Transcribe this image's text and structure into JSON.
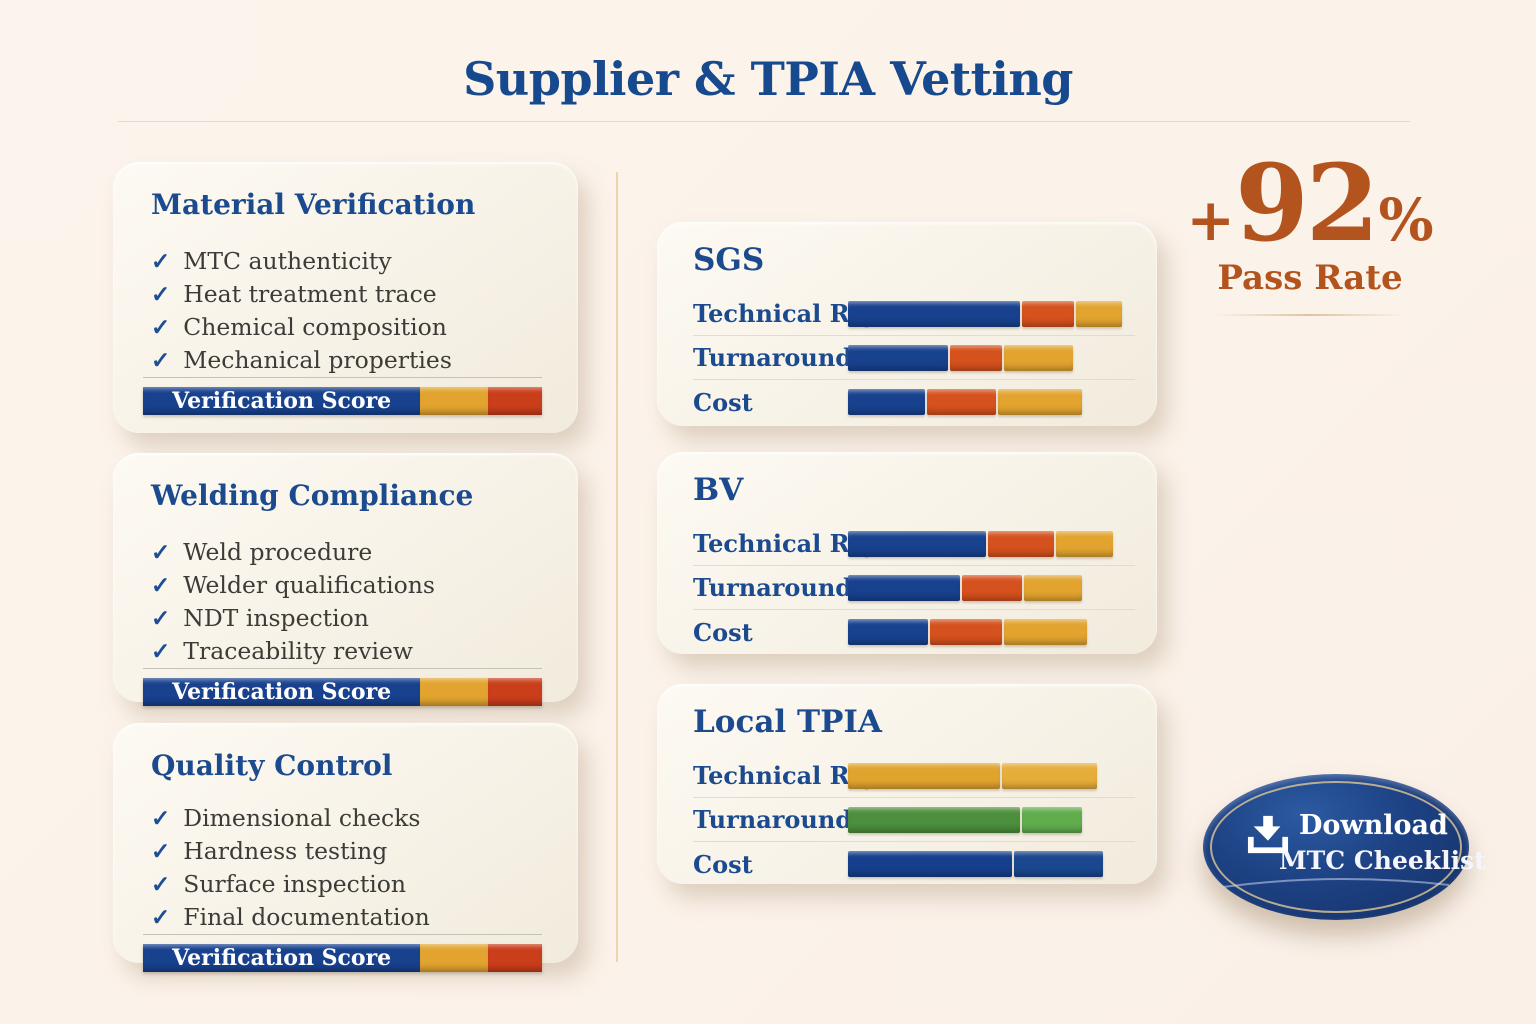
{
  "header": {
    "title": "Supplier & TPIA Vetting"
  },
  "colors": {
    "background": "#fbf2ea",
    "navy": "#1b4a8f",
    "rust": "#b3541f",
    "bar_blue": "#18418e",
    "bar_orange": "#d5511d",
    "bar_gold": "#e2a42f",
    "bar_red": "#ca3e1a",
    "bar_green": "#4c8f3d"
  },
  "checklist_cards": [
    {
      "title": "Material Verification",
      "items": [
        "MTC authenticity",
        "Heat treatment trace",
        "Chemical composition",
        "Mechanical properties"
      ],
      "score_bar": {
        "label": "Verification Score",
        "segments": [
          {
            "color": "#18418e",
            "pct": 69.5
          },
          {
            "color": "#e2a42f",
            "pct": 17
          },
          {
            "color": "#ca3e1a",
            "pct": 13.5
          }
        ]
      }
    },
    {
      "title": "Welding Compliance",
      "items": [
        "Weld procedure",
        "Welder qualifications",
        "NDT inspection",
        "Traceability review"
      ],
      "score_bar": {
        "label": "Verification Score",
        "segments": [
          {
            "color": "#18418e",
            "pct": 69.5
          },
          {
            "color": "#e2a42f",
            "pct": 17
          },
          {
            "color": "#ca3e1a",
            "pct": 13.5
          }
        ]
      }
    },
    {
      "title": "Quality Control",
      "items": [
        "Dimensional checks",
        "Hardness testing",
        "Surface inspection",
        "Final documentation"
      ],
      "score_bar": {
        "label": "Verification Score",
        "segments": [
          {
            "color": "#18418e",
            "pct": 69.5
          },
          {
            "color": "#e2a42f",
            "pct": 17
          },
          {
            "color": "#ca3e1a",
            "pct": 13.5
          }
        ]
      }
    }
  ],
  "tpia_cards": [
    {
      "title": "SGS",
      "rule_color": "#c9a25a",
      "rows": [
        {
          "label": "Technical Rigor",
          "segments": [
            {
              "color": "#18418e",
              "pct": 60
            },
            {
              "color": "#d5511d",
              "pct": 18
            },
            {
              "color": "#e2a42f",
              "pct": 16
            }
          ]
        },
        {
          "label": "Turnaround",
          "segments": [
            {
              "color": "#18418e",
              "pct": 35
            },
            {
              "color": "#d5511d",
              "pct": 18
            },
            {
              "color": "#e2a42f",
              "pct": 24
            }
          ]
        },
        {
          "label": "Cost",
          "segments": [
            {
              "color": "#18418e",
              "pct": 27
            },
            {
              "color": "#d5511d",
              "pct": 24
            },
            {
              "color": "#e2a42f",
              "pct": 29
            }
          ]
        }
      ]
    },
    {
      "title": "BV",
      "rule_color": "#d97a38",
      "rows": [
        {
          "label": "Technical Rigor",
          "segments": [
            {
              "color": "#18418e",
              "pct": 48
            },
            {
              "color": "#d5511d",
              "pct": 23
            },
            {
              "color": "#e2a42f",
              "pct": 20
            }
          ]
        },
        {
          "label": "Turnaround",
          "segments": [
            {
              "color": "#18418e",
              "pct": 39
            },
            {
              "color": "#d5511d",
              "pct": 21
            },
            {
              "color": "#e2a42f",
              "pct": 20
            }
          ]
        },
        {
          "label": "Cost",
          "segments": [
            {
              "color": "#18418e",
              "pct": 28
            },
            {
              "color": "#d5511d",
              "pct": 25
            },
            {
              "color": "#e2a42f",
              "pct": 29
            }
          ]
        }
      ]
    },
    {
      "title": "Local TPIA",
      "rule_color": "#d9964a",
      "rows": [
        {
          "label": "Technical Rigor",
          "segments": [
            {
              "color": "#e0a32e",
              "pct": 53
            },
            {
              "color": "#e6ad3a",
              "pct": 33
            }
          ]
        },
        {
          "label": "Turnaround",
          "segments": [
            {
              "color": "#4c8f3d",
              "pct": 60
            },
            {
              "color": "#61ad4e",
              "pct": 21
            }
          ]
        },
        {
          "label": "Cost",
          "segments": [
            {
              "color": "#153f8c",
              "pct": 57
            },
            {
              "color": "#1a478f",
              "pct": 31
            }
          ]
        }
      ]
    }
  ],
  "pass_rate": {
    "plus": "+",
    "value": "92",
    "percent": "%",
    "label": "Pass Rate"
  },
  "download_button": {
    "line1": "Download",
    "line2": "MTC Cheeklist"
  }
}
